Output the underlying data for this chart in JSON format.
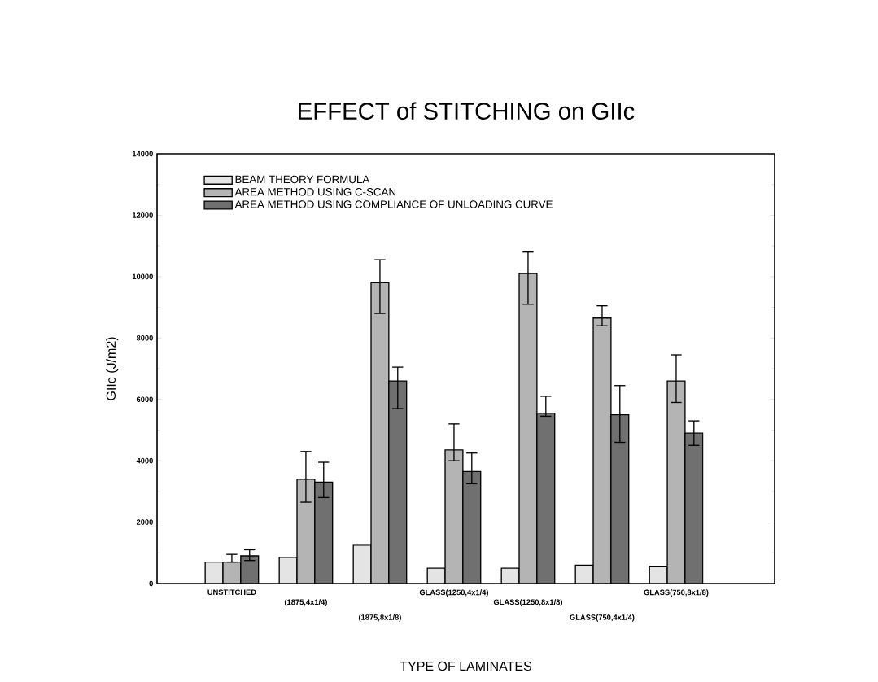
{
  "chart_data": {
    "type": "bar",
    "title": "EFFECT of STITCHING on GIIc",
    "xlabel": "TYPE OF LAMINATES",
    "ylabel": "GIIc (J/m2)",
    "categories": [
      "UNSTITCHED",
      "(1875,4x1/4)",
      "(1875,8x1/8)",
      "GLASS(1250,4x1/4)",
      "GLASS(1250,8x1/8)",
      "GLASS(750,4x1/4)",
      "GLASS(750,8x1/8)"
    ],
    "series": [
      {
        "name": "BEAM THEORY FORMULA",
        "color": "#e4e4e4",
        "values": [
          700,
          850,
          1250,
          500,
          500,
          600,
          550
        ]
      },
      {
        "name": "AREA METHOD USING C-SCAN",
        "color": "#b4b4b4",
        "values": [
          700,
          3400,
          9800,
          4350,
          10100,
          8650,
          6600
        ],
        "errors": [
          [
            700,
            950
          ],
          [
            2650,
            4300
          ],
          [
            8800,
            10550
          ],
          [
            4000,
            5200
          ],
          [
            9100,
            10800
          ],
          [
            8400,
            9050
          ],
          [
            5900,
            7450
          ]
        ]
      },
      {
        "name": "AREA METHOD USING COMPLIANCE OF UNLOADING CURVE",
        "color": "#707070",
        "values": [
          900,
          3300,
          6600,
          3650,
          5550,
          5500,
          4900
        ],
        "errors": [
          [
            750,
            1100
          ],
          [
            2800,
            3950
          ],
          [
            5700,
            7050
          ],
          [
            3250,
            4250
          ],
          [
            5450,
            6100
          ],
          [
            4600,
            6450
          ],
          [
            4500,
            5300
          ]
        ]
      }
    ],
    "ylim": [
      0,
      14000
    ],
    "yticks": [
      0,
      2000,
      4000,
      6000,
      8000,
      10000,
      12000,
      14000
    ],
    "grid": false,
    "legend": "top left"
  }
}
